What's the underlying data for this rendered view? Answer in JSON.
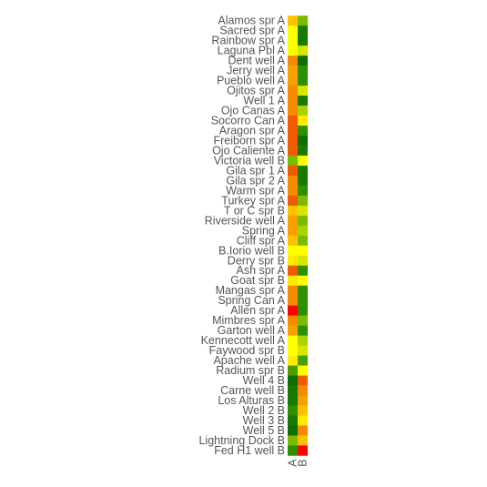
{
  "chart_data": {
    "type": "heatmap",
    "rows": [
      "Alamos spr A",
      "Sacred spr A",
      "Rainbow spr A",
      "Laguna Pbl A",
      "Dent well A",
      "Jerry well A",
      "Pueblo well A",
      "Ojitos spr A",
      "Well 1 A",
      "Ojo Canas A",
      "Socorro Can A",
      "Aragon spr A",
      "Freiborn spr A",
      "Ojo Caliente A",
      "Victoria well B",
      "Gila spr 1 A",
      "Gila spr 2 A",
      "Warm spr A",
      "Turkey spr A",
      "T or C spr B",
      "Riverside well A",
      "Spring A",
      "Cliff spr A",
      "B.Iorio well B",
      "Derry spr B",
      "Ash spr A",
      "Goat spr B",
      "Mangas spr A",
      "Spring Can A",
      "Allen spr A",
      "Mimbres spr A",
      "Garton well A",
      "Kennecott well A",
      "Faywood spr B",
      "Apache well A",
      "Radium spr B",
      "Well 4 B",
      "Carne well B",
      "Los Alturas B",
      "Well 2 B",
      "Well 3 B",
      "Well 5 B",
      "Lightning Dock B",
      "Fed H1 well B"
    ],
    "columns": [
      "A",
      "B"
    ],
    "colors": {
      "red": "#ff0000",
      "orange_red": "#f05a00",
      "orange": "#f58a00",
      "orange_light": "#f8a000",
      "yellow_orange": "#ffc200",
      "yellow": "#ffea00",
      "yellow_bright": "#ffff00",
      "yellow_green": "#d6e600",
      "lime": "#a8d400",
      "olive": "#7aba00",
      "green": "#4a9e00",
      "green_mid": "#2f8f00",
      "green_dark": "#1a7a00",
      "green_deep": "#0f6e00"
    },
    "cells": [
      [
        "yellow_orange",
        "olive"
      ],
      [
        "yellow_bright",
        "green_dark"
      ],
      [
        "yellow_bright",
        "green_dark"
      ],
      [
        "yellow_bright",
        "yellow_green"
      ],
      [
        "orange",
        "green_deep"
      ],
      [
        "orange_light",
        "green_mid"
      ],
      [
        "orange_light",
        "green_mid"
      ],
      [
        "orange",
        "yellow_green"
      ],
      [
        "orange",
        "green_dark"
      ],
      [
        "orange",
        "lime"
      ],
      [
        "orange_red",
        "yellow"
      ],
      [
        "orange_red",
        "green_mid"
      ],
      [
        "orange_red",
        "green_deep"
      ],
      [
        "orange_red",
        "green_dark"
      ],
      [
        "olive",
        "yellow_bright"
      ],
      [
        "orange_red",
        "green_dark"
      ],
      [
        "orange",
        "green_dark"
      ],
      [
        "orange",
        "green_mid"
      ],
      [
        "orange_red",
        "olive"
      ],
      [
        "yellow_orange",
        "yellow_green"
      ],
      [
        "orange_light",
        "olive"
      ],
      [
        "orange_light",
        "lime"
      ],
      [
        "yellow_orange",
        "olive"
      ],
      [
        "yellow_bright",
        "yellow_bright"
      ],
      [
        "yellow",
        "yellow_green"
      ],
      [
        "orange_red",
        "green_mid"
      ],
      [
        "yellow",
        "yellow_bright"
      ],
      [
        "orange",
        "green_mid"
      ],
      [
        "orange",
        "green_mid"
      ],
      [
        "red",
        "green_mid"
      ],
      [
        "orange",
        "olive"
      ],
      [
        "orange_light",
        "green_mid"
      ],
      [
        "yellow_bright",
        "lime"
      ],
      [
        "yellow_bright",
        "yellow_green"
      ],
      [
        "yellow",
        "green"
      ],
      [
        "green",
        "yellow_bright"
      ],
      [
        "green_deep",
        "orange_red"
      ],
      [
        "green_dark",
        "orange"
      ],
      [
        "green_dark",
        "orange_light"
      ],
      [
        "green_mid",
        "yellow_orange"
      ],
      [
        "green_dark",
        "yellow"
      ],
      [
        "green_deep",
        "orange"
      ],
      [
        "olive",
        "yellow_orange"
      ],
      [
        "green_mid",
        "red"
      ]
    ]
  }
}
